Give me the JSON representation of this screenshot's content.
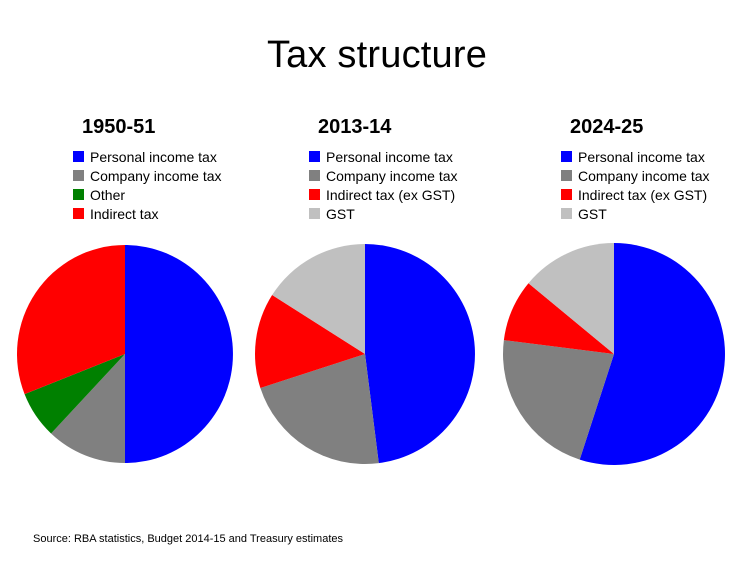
{
  "title": "Tax structure",
  "source": "Source: RBA statistics, Budget 2014-15 and Treasury estimates",
  "colors": {
    "personal": "#0000ff",
    "company": "#808080",
    "other": "#008000",
    "indirect": "#ff0000",
    "gst": "#c0c0c0"
  },
  "chart_data": [
    {
      "type": "pie",
      "title": "1950-51",
      "labels": [
        "Personal income tax",
        "Company income tax",
        "Other",
        "Indirect tax"
      ],
      "values": [
        50,
        12,
        7,
        31
      ],
      "colors": [
        "#0000ff",
        "#808080",
        "#008000",
        "#ff0000"
      ]
    },
    {
      "type": "pie",
      "title": "2013-14",
      "labels": [
        "Personal income tax",
        "Company income tax",
        "Indirect tax (ex GST)",
        "GST"
      ],
      "values": [
        48,
        22,
        14,
        16
      ],
      "colors": [
        "#0000ff",
        "#808080",
        "#ff0000",
        "#c0c0c0"
      ]
    },
    {
      "type": "pie",
      "title": "2024-25",
      "labels": [
        "Personal income tax",
        "Company income tax",
        "Indirect tax (ex GST)",
        "GST"
      ],
      "values": [
        55,
        22,
        9,
        14
      ],
      "colors": [
        "#0000ff",
        "#808080",
        "#ff0000",
        "#c0c0c0"
      ]
    }
  ]
}
